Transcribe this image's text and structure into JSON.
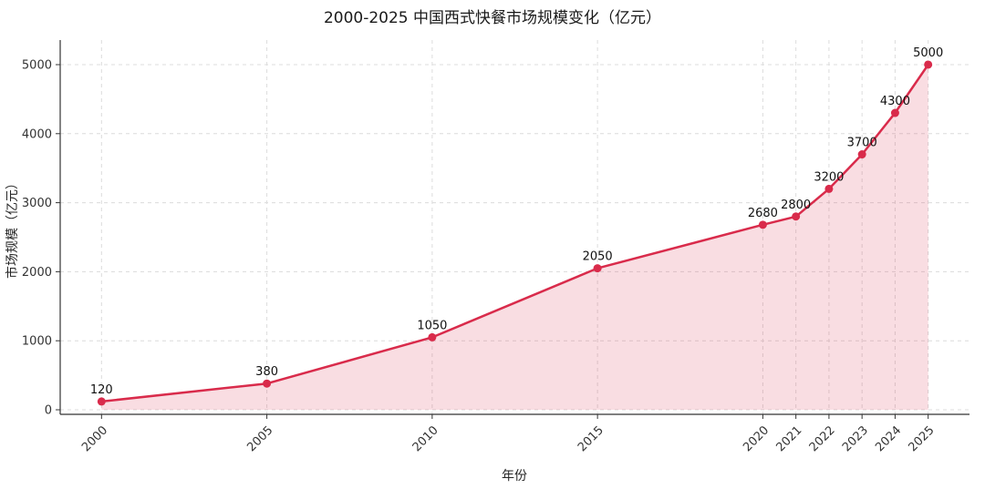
{
  "chart_data": {
    "type": "line",
    "title": "2000-2025 中国西式快餐市场规模变化（亿元）",
    "xlabel": "年份",
    "ylabel": "市场规模（亿元）",
    "x": [
      2000,
      2005,
      2010,
      2015,
      2020,
      2021,
      2022,
      2023,
      2024,
      2025
    ],
    "values": [
      120,
      380,
      1050,
      2050,
      2680,
      2800,
      3200,
      3700,
      4300,
      5000
    ],
    "point_labels": [
      "120",
      "380",
      "1050",
      "2050",
      "2680",
      "2800",
      "3200",
      "3700",
      "4300",
      "5000"
    ],
    "xticks": [
      2000,
      2005,
      2010,
      2015,
      2020,
      2021,
      2022,
      2023,
      2024,
      2025
    ],
    "yticks": [
      0,
      1000,
      2000,
      3000,
      4000,
      5000
    ],
    "xlim": [
      2000,
      2025
    ],
    "ylim": [
      0,
      5000
    ],
    "grid": "both-dashed",
    "legend": "none",
    "line_color": "#d92b4b",
    "marker_color": "#d92b4b",
    "fill_color": "rgba(217,43,75,0.16)"
  }
}
